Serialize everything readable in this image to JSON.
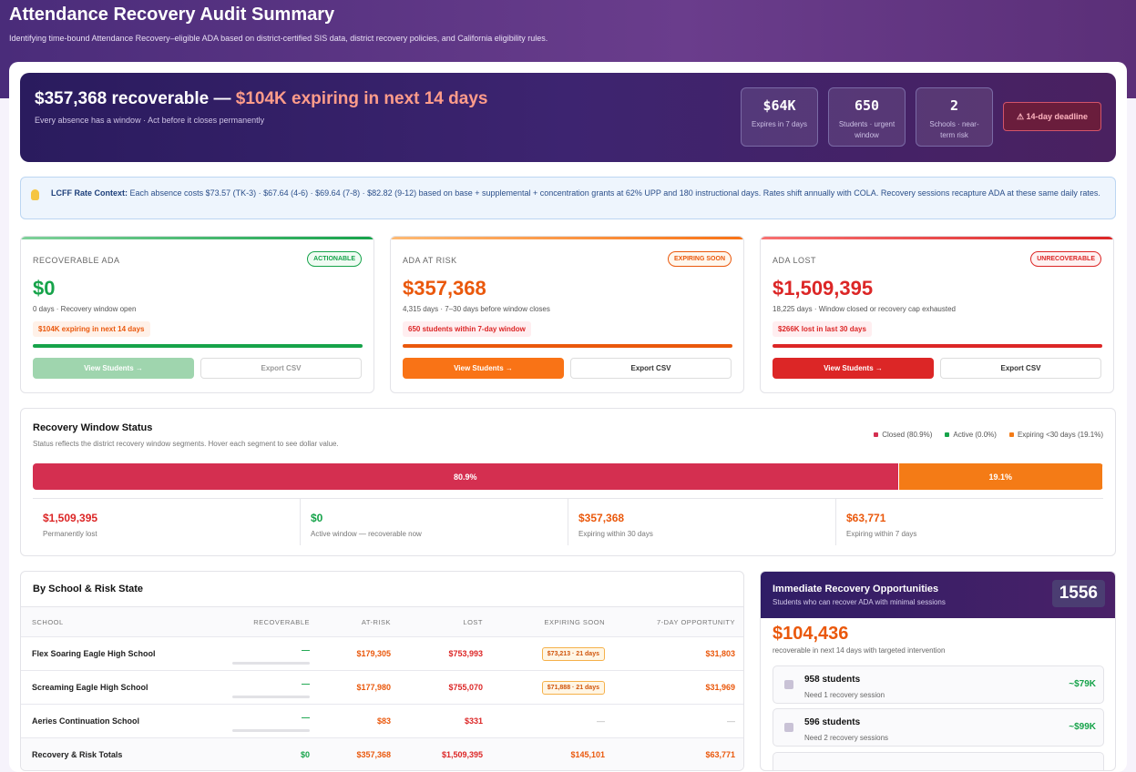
{
  "header": {
    "title": "Attendance Recovery Audit Summary",
    "subtitle": "Identifying time-bound Attendance Recovery–eligible ADA based on district-certified SIS data, district recovery policies, and California eligibility rules."
  },
  "hero": {
    "headline": "$357,368 recoverable —",
    "highlight": "$104K expiring in next 14 days",
    "subtitle": "Every absence has a window · Act before it closes permanently",
    "stats": [
      {
        "value": "$64K",
        "label": "Expires in 7 days"
      },
      {
        "value": 650,
        "label": "Students · urgent window"
      },
      {
        "value": 2,
        "label": "Schools · near-term risk"
      }
    ],
    "deadline": "⚠ 14-day deadline"
  },
  "context": {
    "label": "LCFF Rate Context:",
    "text": "Each absence costs $73.57 (TK-3) · $67.64 (4-6) · $69.64 (7-8) · $82.82 (9-12) based on base + supplemental + concentration grants at 62% UPP and 180 instructional days. Rates shift annually with COLA. Recovery sessions recapture ADA at these same daily rates."
  },
  "cards": [
    {
      "title": "RECOVERABLE ADA",
      "badge": "ACTIONABLE",
      "amount": "$0",
      "detail": "0 days · Recovery window open",
      "note": "$104K expiring in next 14 days",
      "primary": "View Students →",
      "secondary": "Export CSV"
    },
    {
      "title": "ADA AT RISK",
      "badge": "EXPIRING SOON",
      "amount": "$357,368",
      "detail": "4,315 days · 7–30 days before window closes",
      "note": "650 students within 7-day window",
      "primary": "View Students →",
      "secondary": "Export CSV"
    },
    {
      "title": "ADA LOST",
      "badge": "UNRECOVERABLE",
      "amount": "$1,509,395",
      "detail": "18,225 days · Window closed or recovery cap exhausted",
      "note": "$266K lost in last 30 days",
      "primary": "View Students →",
      "secondary": "Export CSV"
    }
  ],
  "window": {
    "title": "Recovery Window Status",
    "subtitle": "Status reflects the district recovery window segments. Hover each segment to see dollar value.",
    "segments": [
      {
        "legend": "Closed (80.9%)",
        "value": 80.9,
        "value_label": "80.9%",
        "color": "#d42f50"
      },
      {
        "legend": "Active (0.0%)",
        "value": 0,
        "color": "#16a34a"
      },
      {
        "legend": "Expiring <30 days (19.1%)",
        "value": 19.1,
        "value_label": "19.1%",
        "color": "#f47b16"
      }
    ],
    "summary": [
      {
        "amount": "$1,509,395",
        "label": "Permanently lost"
      },
      {
        "amount": "$0",
        "label": "Active window — recoverable now"
      },
      {
        "amount": "$357,368",
        "label": "Expiring within 30 days"
      },
      {
        "amount": "$63,771",
        "label": "Expiring within 7 days"
      }
    ]
  },
  "table": {
    "title": "By School & Risk State",
    "columns": [
      "SCHOOL",
      "RECOVERABLE",
      "AT-RISK",
      "LOST",
      "EXPIRING SOON",
      "7-DAY OPPORTUNITY"
    ],
    "rows": [
      [
        "Flex Soaring Eagle High School",
        "—",
        "$179,305",
        "$753,993",
        "$73,213 · 21 days",
        "$31,803"
      ],
      [
        "Screaming Eagle High School",
        "—",
        "$177,980",
        "$755,070",
        "$71,888 · 21 days",
        "$31,969"
      ],
      [
        "Aeries Continuation School",
        "—",
        "$83",
        "$331",
        "—",
        "—"
      ]
    ],
    "totals": [
      "Recovery & Risk Totals",
      "$0",
      "$357,368",
      "$1,509,395",
      "$145,101",
      "$63,771"
    ]
  },
  "opportunities": {
    "title": "Immediate Recovery Opportunities",
    "subtitle": "Students who can recover ADA with minimal sessions",
    "count": 1556,
    "amount": "$104,436",
    "amount_note": "recoverable in next 14 days with targeted intervention",
    "items": [
      {
        "title": "958 students",
        "note": "Need 1 recovery session",
        "value": "~$79K"
      },
      {
        "title": "596 students",
        "note": "Need 2 recovery sessions",
        "value": "~$99K"
      }
    ]
  }
}
